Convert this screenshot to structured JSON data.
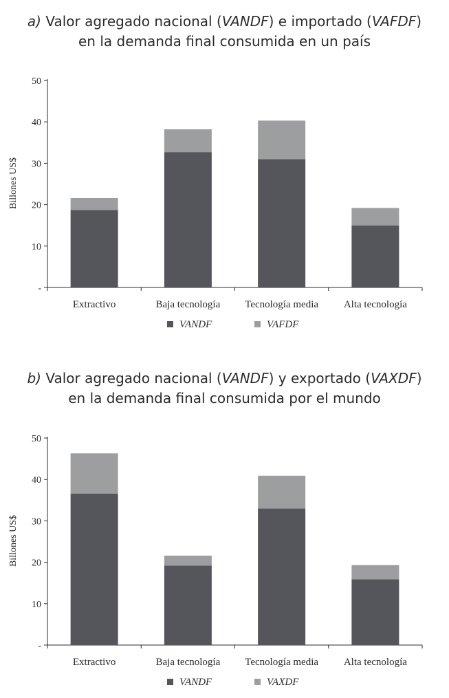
{
  "charts": [
    {
      "title": {
        "prefix": "a)",
        "line1": [
          "Valor agregado nacional (",
          "VANDF",
          ") e importado (",
          "VAFDF",
          ")"
        ],
        "line2": "en la demanda final consumida en un país"
      },
      "legend_labels": [
        "VANDF",
        "VAFDF"
      ]
    },
    {
      "title": {
        "prefix": "b)",
        "line1": [
          "Valor agregado nacional (",
          "VANDF",
          ") y exportado (",
          "VAXDF",
          ")"
        ],
        "line2": "en la demanda final consumida por el mundo"
      },
      "legend_labels": [
        "VANDF",
        "VAXDF"
      ]
    }
  ],
  "colors": {
    "dark": "#55565b",
    "light": "#9d9e9f",
    "axis": "#2b2b2b",
    "text": "#2b2b2b"
  },
  "chart_data": [
    {
      "type": "bar",
      "stacked": true,
      "title": "a) Valor agregado nacional (VANDF) e importado (VAFDF) en la demanda final consumida en un país",
      "categories": [
        "Extractivo",
        "Baja tecnología",
        "Tecnología media",
        "Alta tecnología"
      ],
      "series": [
        {
          "name": "VANDF",
          "values": [
            18.7,
            32.7,
            31.0,
            15.0
          ]
        },
        {
          "name": "VAFDF",
          "values": [
            2.9,
            5.5,
            9.3,
            4.2
          ]
        }
      ],
      "xlabel": "",
      "ylabel": "Billones US$",
      "ylim": [
        0,
        50
      ],
      "yticks": [
        0,
        10,
        20,
        30,
        40,
        50
      ],
      "ytick_labels": [
        "-",
        "10",
        "20",
        "30",
        "40",
        "50"
      ],
      "legend": "bottom-center"
    },
    {
      "type": "bar",
      "stacked": true,
      "title": "b) Valor agregado nacional (VANDF) y exportado (VAXDF) en la demanda final consumida por el mundo",
      "categories": [
        "Extractivo",
        "Baja tecnología",
        "Tecnología media",
        "Alta tecnología"
      ],
      "series": [
        {
          "name": "VANDF",
          "values": [
            36.6,
            19.2,
            33.0,
            15.9
          ]
        },
        {
          "name": "VAXDF",
          "values": [
            9.7,
            2.4,
            7.9,
            3.4
          ]
        }
      ],
      "xlabel": "",
      "ylabel": "Billones US$",
      "ylim": [
        0,
        50
      ],
      "yticks": [
        0,
        10,
        20,
        30,
        40,
        50
      ],
      "ytick_labels": [
        "-",
        "10",
        "20",
        "30",
        "40",
        "50"
      ],
      "legend": "bottom-center"
    }
  ]
}
